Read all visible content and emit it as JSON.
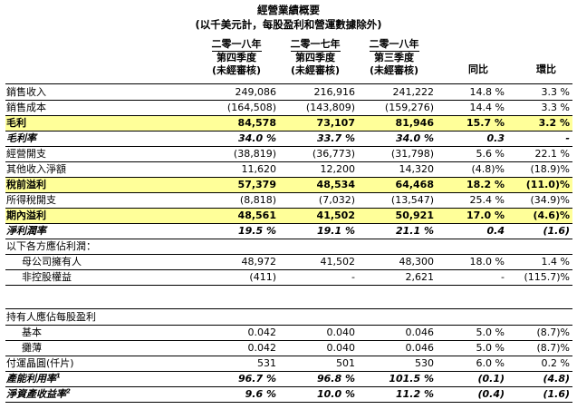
{
  "title": "經營業績概要",
  "subtitle": "(以千美元計，每股盈利和營運數據除外)",
  "columns": [
    {
      "l1": "二零一八年",
      "l2": "第四季度",
      "l3": "(未經審核)"
    },
    {
      "l1": "二零一七年",
      "l2": "第四季度",
      "l3": "(未經審核)"
    },
    {
      "l1": "二零一八年",
      "l2": "第三季度",
      "l3": "(未經審核)"
    },
    {
      "l1": "同比",
      "l2": "",
      "l3": ""
    },
    {
      "l1": "環比",
      "l2": "",
      "l3": ""
    }
  ],
  "rows": [
    {
      "label": "銷售收入",
      "v": [
        "249,086",
        "216,916",
        "241,222",
        "14.8 %",
        "3.3 %"
      ]
    },
    {
      "label": "銷售成本",
      "v": [
        "(164,508)",
        "(143,809)",
        "(159,276)",
        "14.4 %",
        "3.3 %"
      ]
    },
    {
      "label": "毛利",
      "v": [
        "84,578",
        "73,107",
        "81,946",
        "15.7 %",
        "3.2 %"
      ]
    },
    {
      "label": "毛利率",
      "v": [
        "34.0 %",
        "33.7 %",
        "34.0 %",
        "0.3",
        "-"
      ]
    },
    {
      "label": "經營開支",
      "v": [
        "(38,819)",
        "(36,773)",
        "(31,798)",
        "5.6 %",
        "22.1 %"
      ]
    },
    {
      "label": "其他收入淨額",
      "v": [
        "11,620",
        "12,200",
        "14,320",
        "(4.8)%",
        "(18.9)%"
      ]
    },
    {
      "label": "稅前溢利",
      "v": [
        "57,379",
        "48,534",
        "64,468",
        "18.2 %",
        "(11.0)%"
      ]
    },
    {
      "label": "所得稅開支",
      "v": [
        "(8,818)",
        "(7,032)",
        "(13,547)",
        "25.4 %",
        "(34.9)%"
      ]
    },
    {
      "label": "期內溢利",
      "v": [
        "48,561",
        "41,502",
        "50,921",
        "17.0 %",
        "(4.6)%"
      ]
    },
    {
      "label": "淨利潤率",
      "v": [
        "19.5 %",
        "19.1 %",
        "21.1 %",
        "0.4",
        "(1.6)"
      ]
    },
    {
      "label": "以下各方應佔利潤：",
      "v": [
        "",
        "",
        "",
        "",
        ""
      ]
    },
    {
      "label": "母公司擁有人",
      "v": [
        "48,972",
        "41,502",
        "48,300",
        "18.0 %",
        "1.4 %"
      ]
    },
    {
      "label": "非控股權益",
      "v": [
        "(411)",
        "-",
        "2,621",
        "-",
        "(115.7)%"
      ]
    },
    {
      "label": "持有人應佔每股盈利",
      "v": [
        "",
        "",
        "",
        "",
        ""
      ]
    },
    {
      "label": "基本",
      "v": [
        "0.042",
        "0.040",
        "0.046",
        "5.0 %",
        "(8.7)%"
      ]
    },
    {
      "label": "攤薄",
      "v": [
        "0.042",
        "0.040",
        "0.046",
        "5.0 %",
        "(8.7)%"
      ]
    },
    {
      "label": "付運晶圓(仟片)",
      "v": [
        "531",
        "501",
        "530",
        "6.0 %",
        "0.2 %"
      ]
    },
    {
      "label": "產能利用率",
      "sup": "1",
      "v": [
        "96.7 %",
        "96.8 %",
        "101.5 %",
        "(0.1)",
        "(4.8)"
      ]
    },
    {
      "label": "淨資產收益率",
      "sup": "2",
      "v": [
        "9.6 %",
        "10.0 %",
        "11.2 %",
        "(0.4)",
        "(1.6)"
      ]
    }
  ],
  "colors": {
    "highlight": "#ffff99"
  }
}
